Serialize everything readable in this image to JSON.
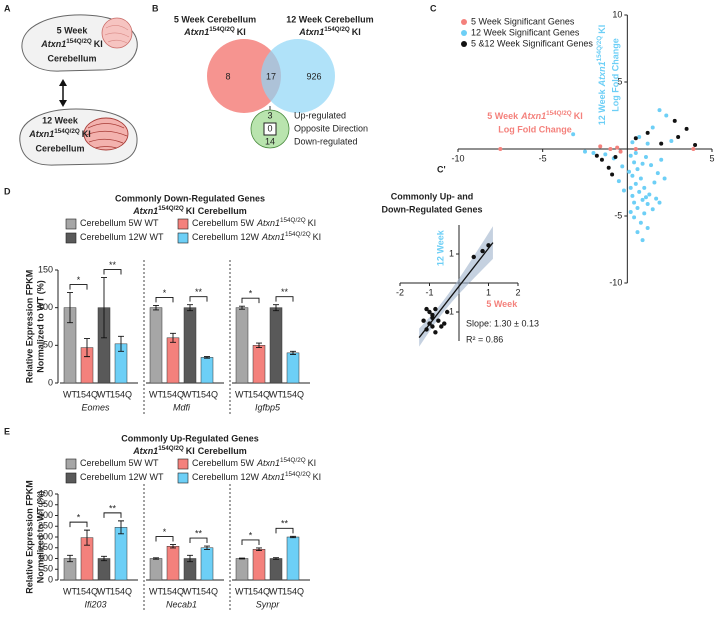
{
  "panel_a": {
    "label": "A",
    "top": {
      "line1": "5 Week",
      "genotype": {
        "gene": "Atxn1",
        "allele": "154Q/2Q",
        "suffix": "KI"
      },
      "line2": "Cerebellum"
    },
    "bottom": {
      "line1": "12 Week",
      "genotype": {
        "gene": "Atxn1",
        "allele": "154Q/2Q",
        "suffix": "KI"
      },
      "line2": "Cerebellum"
    }
  },
  "panel_b": {
    "label": "B",
    "left": {
      "line1": "5 Week Cerebellum",
      "genotype": {
        "gene": "Atxn1",
        "allele": "154Q/2Q",
        "suffix": "KI"
      }
    },
    "right": {
      "line1": "12 Week Cerebellum",
      "genotype": {
        "gene": "Atxn1",
        "allele": "154Q/2Q",
        "suffix": "KI"
      }
    },
    "counts": {
      "only_5w": 8,
      "both": 17,
      "only_12w": 926
    },
    "direction": [
      {
        "count": 3,
        "label": "Up-regulated"
      },
      {
        "count": 0,
        "label": "Opposite Direction"
      },
      {
        "count": 14,
        "label": "Down-regulated"
      }
    ]
  },
  "chart_data": [
    {
      "type": "scatter",
      "panel_label": "C",
      "xlabel": {
        "line1": "5 Week",
        "genotype": {
          "gene": "Atxn1",
          "allele": "154Q/2Q",
          "suffix": "KI"
        },
        "line2": "Log Fold Change"
      },
      "ylabel": {
        "line1": "12 Week",
        "genotype": {
          "gene": "Atxn1",
          "allele": "154Q/2Q",
          "suffix": "KI"
        },
        "line2": "Log Fold Change"
      },
      "xlim": [
        -10,
        5
      ],
      "xticks": [
        -10,
        -5,
        5
      ],
      "ylim": [
        -10,
        10
      ],
      "yticks": [
        -10,
        -5,
        5,
        10
      ],
      "legend": "top-left",
      "series": [
        {
          "name": "5 Week Significant Genes",
          "color": "#f4817c",
          "x": [
            -7.5,
            -1.0,
            -0.4,
            -0.6,
            0.5,
            -1.6,
            3.9
          ],
          "values": [
            0,
            0,
            -0.2,
            0.1,
            0,
            0.2,
            0
          ]
        },
        {
          "name": "12 Week Significant Genes",
          "color": "#6dcff6",
          "x": [
            0.2,
            0.4,
            0.6,
            0.3,
            0.8,
            0.5,
            1.0,
            0.7,
            0.3,
            0.9,
            1.2,
            0.6,
            1.0,
            1.5,
            0.4,
            0.8,
            1.3,
            1.6,
            1.8,
            1.4,
            2.0,
            1.1,
            0.1,
            0.2,
            0.5,
            0.9,
            1.7,
            2.2,
            0.6,
            1.2,
            -0.3,
            -0.5,
            -0.2,
            -0.8,
            -1.3,
            -2.0,
            -3.2,
            -2.5,
            0.3,
            0.7,
            1.5,
            2.3,
            1.9,
            1.2,
            2.6,
            0.4,
            1.1,
            0.2,
            1.9,
            0.9
          ],
          "values": [
            -0.5,
            -1.0,
            -1.5,
            -2.0,
            -2.2,
            -2.6,
            -2.9,
            -3.2,
            -3.5,
            -3.8,
            -4.1,
            -4.4,
            -4.8,
            -4.5,
            -5.1,
            -5.5,
            -3.4,
            -2.5,
            -1.8,
            -1.2,
            -0.8,
            -0.6,
            -1.7,
            -2.9,
            -0.3,
            -1.1,
            -3.7,
            -2.2,
            -6.2,
            -5.9,
            -1.3,
            -2.4,
            -3.1,
            -0.7,
            -0.4,
            -0.3,
            1.1,
            -0.2,
            0.5,
            0.9,
            1.6,
            2.5,
            2.9,
            0.4,
            0.6,
            -4.0,
            -3.6,
            -4.7,
            -4.0,
            -6.8
          ]
        },
        {
          "name": "5 &12 Week Significant Genes",
          "color": "#111111",
          "x": [
            -1.5,
            -1.1,
            -0.7,
            -1.8,
            0.5,
            1.2,
            2.0,
            3.5,
            4.0,
            3.0,
            -0.9,
            2.8
          ],
          "values": [
            -0.8,
            -1.4,
            -0.6,
            -0.5,
            0.8,
            1.2,
            0.4,
            1.5,
            0.3,
            0.9,
            -1.9,
            2.1
          ]
        }
      ]
    },
    {
      "type": "scatter",
      "panel_label": "C'",
      "title": [
        "Commonly Up- and",
        "Down-Regulated Genes"
      ],
      "xlabel": "5 Week",
      "ylabel": "12 Week",
      "xlim": [
        -2,
        2
      ],
      "xticks": [
        -2,
        -1,
        1,
        2
      ],
      "ylim": [
        -2,
        2
      ],
      "yticks": [
        -1,
        1
      ],
      "regression_band": true,
      "annotations": [
        "Slope: 1.30 ± 0.13",
        "R² = 0.86"
      ],
      "series": [
        {
          "color": "#111111",
          "x": [
            -1.1,
            -1.0,
            -0.9,
            -0.8,
            -1.2,
            -1.0,
            -0.9,
            -0.7,
            -0.6,
            -1.1,
            -0.8,
            -0.5,
            -0.9,
            -0.4,
            0.5,
            0.8,
            1.0
          ],
          "values": [
            -0.9,
            -1.0,
            -1.1,
            -0.9,
            -1.3,
            -1.4,
            -1.5,
            -1.3,
            -1.5,
            -1.6,
            -1.7,
            -1.4,
            -1.2,
            -1.0,
            0.9,
            1.1,
            1.3
          ]
        }
      ]
    },
    {
      "type": "bar",
      "panel_label": "D",
      "title": "Commonly Down-Regulated Genes",
      "subtitle": {
        "genotype": {
          "gene": "Atxn1",
          "allele": "154Q/2Q",
          "suffix": "KI"
        },
        "text": "Cerebellum"
      },
      "ylabel": [
        "Relative Expression FPKM",
        "Normalized to WT (%)"
      ],
      "ylim": [
        0,
        150
      ],
      "yticks": [
        0,
        50,
        100,
        150
      ],
      "categories": [
        "Eomes",
        "Mdfi",
        "Igfbp5"
      ],
      "bar_labels": [
        "WT",
        "154Q",
        "WT",
        "154Q"
      ],
      "significance": [
        [
          "*",
          "**"
        ],
        [
          "*",
          "**"
        ],
        [
          "*",
          "**"
        ]
      ],
      "series": [
        {
          "name": "Cerebellum 5W WT",
          "color": "#a6a6a6",
          "values": [
            100,
            100,
            100
          ],
          "errors": [
            20,
            3,
            2
          ]
        },
        {
          "name": "Cerebellum 5W",
          "genotype": {
            "gene": "Atxn1",
            "allele": "154Q/2Q",
            "suffix": "KI"
          },
          "color": "#f4817c",
          "values": [
            47,
            60,
            50
          ],
          "errors": [
            12,
            6,
            3
          ]
        },
        {
          "name": "Cerebellum 12W WT",
          "color": "#595959",
          "values": [
            100,
            100,
            100
          ],
          "errors": [
            40,
            4,
            4
          ]
        },
        {
          "name": "Cerebellum 12W",
          "genotype": {
            "gene": "Atxn1",
            "allele": "154Q/2Q",
            "suffix": "KI"
          },
          "color": "#6dcff6",
          "values": [
            52,
            34,
            40
          ],
          "errors": [
            10,
            1,
            2
          ]
        }
      ]
    },
    {
      "type": "bar",
      "panel_label": "E",
      "title": "Commonly Up-Regulated Genes",
      "subtitle": {
        "genotype": {
          "gene": "Atxn1",
          "allele": "154Q/2Q",
          "suffix": "KI"
        },
        "text": "Cerebellum"
      },
      "ylabel": [
        "Relative Expression FPKM",
        "Normalized to WT (%)"
      ],
      "ylim": [
        0,
        400
      ],
      "yticks": [
        0,
        50,
        100,
        150,
        200,
        250,
        300,
        350,
        400
      ],
      "categories": [
        "Ifi203",
        "Necab1",
        "Synpr"
      ],
      "bar_labels": [
        "WT",
        "154Q",
        "WT",
        "154Q"
      ],
      "significance": [
        [
          "*",
          "**"
        ],
        [
          "*",
          "**"
        ],
        [
          "*",
          "**"
        ]
      ],
      "series": [
        {
          "name": "Cerebellum 5W WT",
          "color": "#a6a6a6",
          "values": [
            100,
            100,
            100
          ],
          "errors": [
            15,
            3,
            2
          ]
        },
        {
          "name": "Cerebellum 5W",
          "genotype": {
            "gene": "Atxn1",
            "allele": "154Q/2Q",
            "suffix": "KI"
          },
          "color": "#f4817c",
          "values": [
            197,
            157,
            143
          ],
          "errors": [
            35,
            8,
            6
          ]
        },
        {
          "name": "Cerebellum 12W WT",
          "color": "#595959",
          "values": [
            100,
            100,
            100
          ],
          "errors": [
            10,
            15,
            4
          ]
        },
        {
          "name": "Cerebellum 12W",
          "genotype": {
            "gene": "Atxn1",
            "allele": "154Q/2Q",
            "suffix": "KI"
          },
          "color": "#6dcff6",
          "values": [
            245,
            150,
            200
          ],
          "errors": [
            30,
            8,
            3
          ]
        }
      ]
    }
  ]
}
